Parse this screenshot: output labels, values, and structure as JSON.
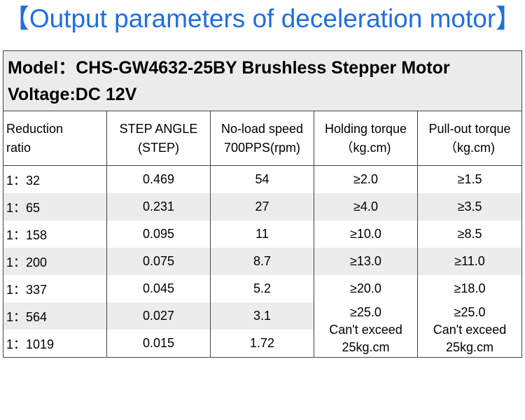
{
  "title": "【Output parameters of deceleration motor】",
  "model_line": "Model：CHS-GW4632-25BY Brushless Stepper Motor",
  "voltage_line": "Voltage:DC 12V",
  "headers": [
    [
      "Reduction",
      "ratio"
    ],
    [
      "STEP ANGLE",
      "(STEP)"
    ],
    [
      "No-load speed",
      "700PPS(rpm)"
    ],
    [
      "Holding torque",
      "（kg.cm)"
    ],
    [
      "Pull-out torque",
      "（kg.cm)"
    ]
  ],
  "rows": [
    {
      "ratio": "1：32",
      "step": "0.469",
      "speed": "54",
      "holding": "≥2.0",
      "pullout": "≥1.5"
    },
    {
      "ratio": "1：65",
      "step": "0.231",
      "speed": "27",
      "holding": "≥4.0",
      "pullout": "≥3.5"
    },
    {
      "ratio": "1：158",
      "step": "0.095",
      "speed": "11",
      "holding": "≥10.0",
      "pullout": "≥8.5"
    },
    {
      "ratio": "1：200",
      "step": "0.075",
      "speed": "8.7",
      "holding": "≥13.0",
      "pullout": "≥11.0"
    },
    {
      "ratio": "1：337",
      "step": "0.045",
      "speed": "5.2",
      "holding": "≥20.0",
      "pullout": "≥18.0"
    },
    {
      "ratio": "1：564",
      "step": "0.027",
      "speed": "3.1"
    },
    {
      "ratio": "1：1019",
      "step": "0.015",
      "speed": "1.72"
    }
  ],
  "merged": {
    "holding": [
      "≥25.0",
      "Can't exceed",
      "25kg.cm"
    ],
    "pullout": [
      "≥25.0",
      "Can't exceed",
      "25kg.cm"
    ]
  }
}
